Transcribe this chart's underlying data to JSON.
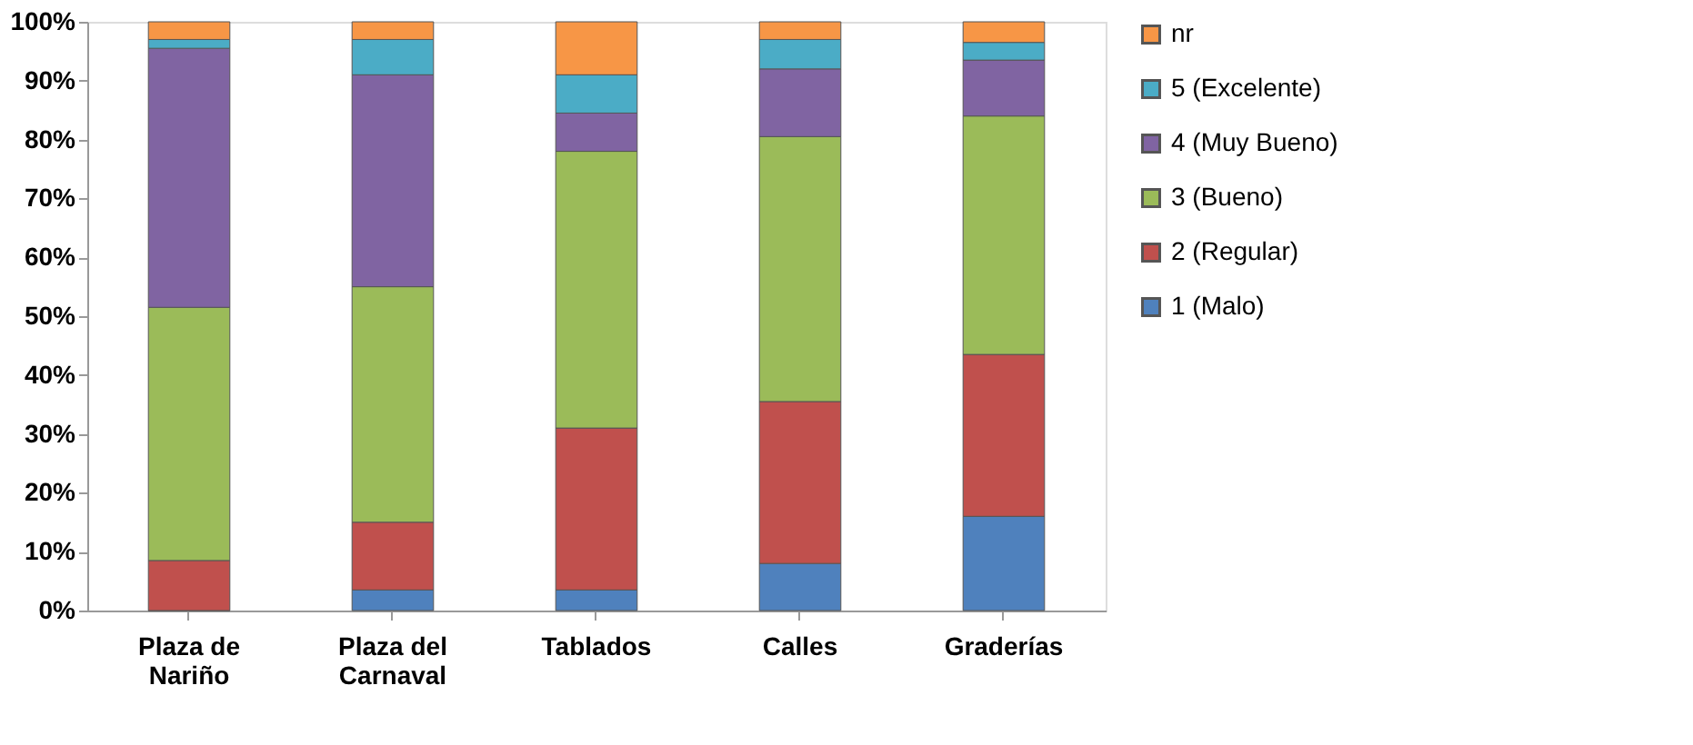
{
  "chart_data": {
    "type": "bar",
    "stacked": true,
    "legend": "right",
    "grid": false,
    "categories": [
      "Plaza de Nariño",
      "Plaza del Carnaval",
      "Tablados",
      "Calles",
      "Graderías"
    ],
    "ylim": [
      0,
      100
    ],
    "yticks": [
      {
        "value": 0,
        "label": "0%"
      },
      {
        "value": 10,
        "label": "10%"
      },
      {
        "value": 20,
        "label": "20%"
      },
      {
        "value": 30,
        "label": "30%"
      },
      {
        "value": 40,
        "label": "40%"
      },
      {
        "value": 50,
        "label": "50%"
      },
      {
        "value": 60,
        "label": "60%"
      },
      {
        "value": 70,
        "label": "70%"
      },
      {
        "value": 80,
        "label": "80%"
      },
      {
        "value": 90,
        "label": "90%"
      },
      {
        "value": 100,
        "label": "100%"
      }
    ],
    "series": [
      {
        "name": "1 (Malo)",
        "color": "#4f81bd",
        "values": [
          0,
          3.5,
          3.5,
          8,
          16
        ]
      },
      {
        "name": "2 (Regular)",
        "color": "#c0504d",
        "values": [
          8.5,
          11.5,
          27.5,
          27.5,
          27.5
        ]
      },
      {
        "name": "3 (Bueno)",
        "color": "#9bbb59",
        "values": [
          43,
          40,
          47,
          45,
          40.5
        ]
      },
      {
        "name": "4 (Muy Bueno)",
        "color": "#8064a2",
        "values": [
          44,
          36,
          6.5,
          11.5,
          9.5
        ]
      },
      {
        "name": "5 (Excelente)",
        "color": "#4bacc6",
        "values": [
          1.5,
          6,
          6.5,
          5,
          3
        ]
      },
      {
        "name": "nr",
        "color": "#f79646",
        "values": [
          3,
          3,
          9,
          3,
          3.5
        ]
      }
    ]
  }
}
